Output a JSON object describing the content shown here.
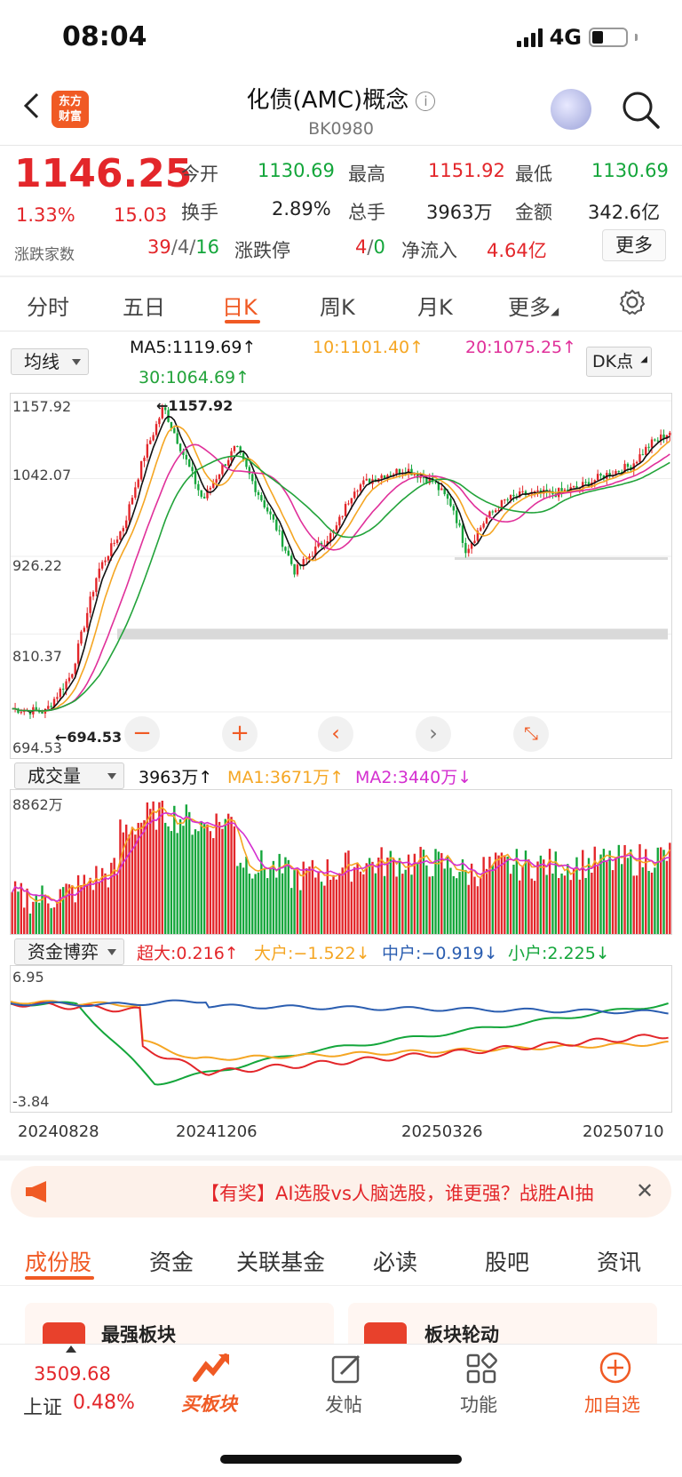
{
  "status": {
    "time": "08:04",
    "network": "4G"
  },
  "header": {
    "title": "化债(AMC)概念",
    "code": "BK0980",
    "logo_text": "东方财富"
  },
  "quote": {
    "price": "1146.25",
    "change_pct": "1.33%",
    "change": "15.03",
    "open_label": "今开",
    "open": "1130.69",
    "high_label": "最高",
    "high": "1151.92",
    "low_label": "最低",
    "low": "1130.69",
    "turnover_label": "换手",
    "turnover": "2.89%",
    "volume_label": "总手",
    "volume": "3963万",
    "amount_label": "金额",
    "amount": "342.6亿",
    "breadth_label": "涨跌家数",
    "breadth_up": "39",
    "breadth_flat": "4",
    "breadth_down": "16",
    "limit_label": "涨跌停",
    "limit_up": "4",
    "limit_down": "0",
    "inflow_label": "净流入",
    "inflow": "4.64亿",
    "more_label": "更多"
  },
  "tabs": [
    "分时",
    "五日",
    "日K",
    "周K",
    "月K",
    "更多"
  ],
  "active_tab": "日K",
  "kline": {
    "indicator": "均线",
    "ma5": "MA5:1119.69↑",
    "ma10": "10:1101.40↑",
    "ma20": "20:1075.25↑",
    "ma30": "30:1064.69↑",
    "dk": "DK点",
    "y_ticks": [
      "1157.92",
      "1042.07",
      "926.22",
      "810.37",
      "694.53"
    ],
    "max_label": "1157.92",
    "min_label": "694.53",
    "colors": {
      "up": "#e3262a",
      "down": "#14a63b",
      "ma5": "#111111",
      "ma10": "#f5a623",
      "ma20": "#e0309a",
      "ma30": "#22a33a"
    }
  },
  "volume_panel": {
    "indicator": "成交量",
    "value": "3963万↑",
    "ma1": "MA1:3671万↑",
    "ma2": "MA2:3440万↓",
    "max_label": "8862万"
  },
  "fund_panel": {
    "indicator": "资金博弈",
    "super": "超大:0.216↑",
    "large": "大户:−1.522↓",
    "medium": "中户:−0.919↓",
    "small": "小户:2.225↓",
    "max_label": "6.95",
    "min_label": "-3.84",
    "dates": [
      "20240828",
      "20241206",
      "20250326",
      "20250710"
    ]
  },
  "chart_data": {
    "type": "line",
    "title": "",
    "x": [
      "20240828",
      "20241206",
      "20250326",
      "20250710"
    ],
    "ylim": [
      694.53,
      1157.92
    ],
    "series": [
      {
        "name": "MA5",
        "last": 1119.69
      },
      {
        "name": "MA10",
        "last": 1101.4
      },
      {
        "name": "MA20",
        "last": 1075.25
      },
      {
        "name": "MA30",
        "last": 1064.69
      }
    ]
  },
  "banner": {
    "text": "【有奖】AI选股vs人脑选股，谁更强？战胜AI抽"
  },
  "bottom_tabs": [
    "成份股",
    "资金",
    "关联基金",
    "必读",
    "股吧",
    "资讯"
  ],
  "cards": [
    "最强板块",
    "板块轮动"
  ],
  "nav": {
    "index_value": "3509.68",
    "index_name": "上证",
    "index_change": "0.48%",
    "items": [
      "买板块",
      "发帖",
      "功能",
      "加自选"
    ]
  }
}
